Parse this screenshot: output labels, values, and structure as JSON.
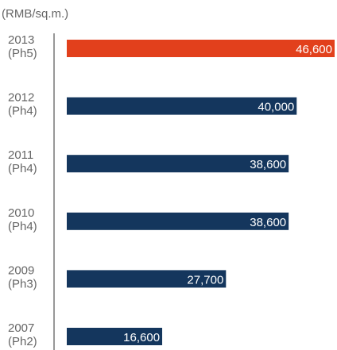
{
  "chart_data": {
    "type": "bar",
    "orientation": "horizontal",
    "title": "(RMB/sq.m.)",
    "categories": [
      "2013\n(Ph5)",
      "2012\n(Ph4)",
      "2011\n(Ph4)",
      "2010\n(Ph4)",
      "2009\n(Ph3)",
      "2007\n(Ph2)"
    ],
    "values": [
      46600,
      40000,
      38600,
      38600,
      27700,
      16600
    ],
    "value_labels": [
      "46,600",
      "40,000",
      "38,600",
      "38,600",
      "27,700",
      "16,600"
    ],
    "colors": [
      "#e2401c",
      "#14365d",
      "#14365d",
      "#14365d",
      "#14365d",
      "#14365d"
    ]
  }
}
